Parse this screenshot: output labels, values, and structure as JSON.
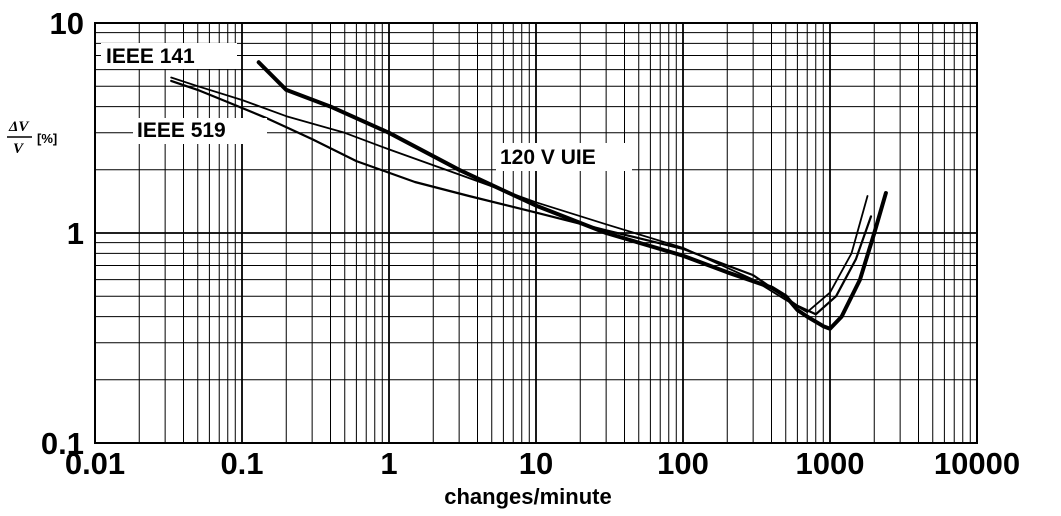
{
  "chart_data": {
    "type": "line",
    "title": "",
    "xlabel": "changes/minute",
    "ylabel": {
      "numerator": "ΔV",
      "denominator": "V",
      "unit": "[%]"
    },
    "x_scale": "log",
    "y_scale": "log",
    "xlim": [
      0.01,
      10000
    ],
    "ylim": [
      0.1,
      10
    ],
    "grid": true,
    "x_ticks": [
      "0.01",
      "0.1",
      "1",
      "10",
      "100",
      "1000",
      "10000"
    ],
    "y_ticks": [
      "10",
      "1",
      "0.1"
    ],
    "series": [
      {
        "name": "IEEE 141",
        "x": [
          0.033,
          0.05,
          0.08,
          0.15,
          0.3,
          0.6,
          1.5,
          3.5,
          10,
          30,
          100,
          300,
          600,
          800,
          1100,
          1500,
          1900
        ],
        "y": [
          5.3,
          4.8,
          4.2,
          3.5,
          2.8,
          2.2,
          1.75,
          1.5,
          1.25,
          1.03,
          0.84,
          0.63,
          0.45,
          0.41,
          0.5,
          0.75,
          1.2
        ]
      },
      {
        "name": "IEEE 519",
        "x": [
          0.033,
          0.05,
          0.1,
          0.2,
          0.5,
          1,
          3,
          10,
          30,
          100,
          300,
          500,
          700,
          1000,
          1400,
          1800
        ],
        "y": [
          5.5,
          5.0,
          4.3,
          3.6,
          3.0,
          2.5,
          1.9,
          1.4,
          1.1,
          0.85,
          0.6,
          0.48,
          0.42,
          0.52,
          0.8,
          1.5
        ]
      },
      {
        "name": "120 V UIE",
        "x": [
          0.13,
          0.2,
          0.4,
          1,
          3,
          10,
          30,
          100,
          200,
          400,
          500,
          600,
          700,
          900,
          1000,
          1200,
          1600,
          2000,
          2400
        ],
        "y": [
          6.5,
          4.8,
          4.0,
          3.0,
          2.0,
          1.35,
          1.0,
          0.78,
          0.65,
          0.55,
          0.5,
          0.43,
          0.4,
          0.36,
          0.35,
          0.4,
          0.6,
          1.0,
          1.55
        ]
      }
    ]
  }
}
